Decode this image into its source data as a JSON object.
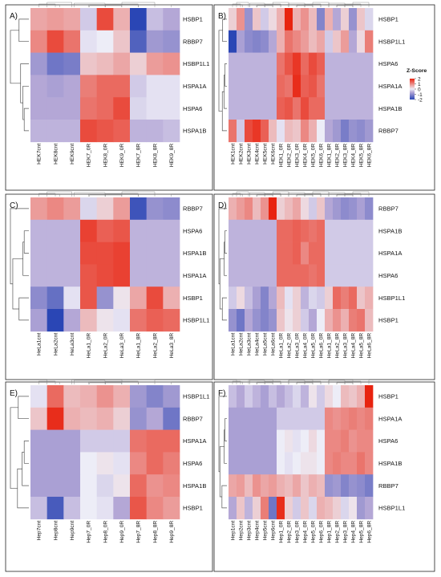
{
  "legend": {
    "title": "Z-Score",
    "ticks": [
      2,
      1,
      0,
      -1,
      -2
    ],
    "colors": {
      "high": "#e8230f",
      "mid": "#ededf7",
      "low": "#2a46b5",
      "neutral": "#b4a7d6"
    }
  },
  "chart_data": [
    {
      "type": "heatmap",
      "panel_label": "A)",
      "rows": [
        "HSBP1",
        "RBBP7",
        "HSBP1L1",
        "HSPA1A",
        "HSPA6",
        "HSPA1B"
      ],
      "columns": [
        "HEK7cnt",
        "HEK8cnt",
        "HEK9cnt",
        "HEK7_0R",
        "HEK8_0R",
        "HEK9_0R",
        "HEK7_8R",
        "HEK8_8R",
        "HEK9_8R"
      ],
      "values": [
        [
          0.7,
          0.8,
          0.7,
          -0.3,
          1.6,
          0.6,
          -2.0,
          -0.4,
          -0.6
        ],
        [
          1.0,
          1.6,
          1.2,
          -0.1,
          0.0,
          0.4,
          -1.6,
          -0.8,
          -0.9
        ],
        [
          -0.8,
          -1.3,
          -1.2,
          0.4,
          0.5,
          0.7,
          0.3,
          0.8,
          0.9
        ],
        [
          -0.6,
          -0.7,
          -0.6,
          1.1,
          1.3,
          1.3,
          -0.3,
          -0.1,
          -0.1
        ],
        [
          -0.6,
          -0.6,
          -0.6,
          1.2,
          1.3,
          1.6,
          -0.2,
          -0.1,
          -0.1
        ],
        [
          -0.5,
          -0.5,
          -0.5,
          1.6,
          1.5,
          1.4,
          -0.5,
          -0.5,
          -0.4
        ]
      ],
      "zlim": [
        -2,
        2
      ]
    },
    {
      "type": "heatmap",
      "panel_label": "B)",
      "rows": [
        "HSBP1",
        "HSBP1L1",
        "HSPA6",
        "HSPA1A",
        "HSPA1B",
        "RBBP7"
      ],
      "columns": [
        "HEK1cnt",
        "HEK2cnt",
        "HEK3cnt",
        "HEK4cnt",
        "HEK5cnt",
        "HEK6cnt",
        "HEK1_0R",
        "HEK2_0R",
        "HEK3_0R",
        "HEK4_0R",
        "HEK5_0R",
        "HEK6_0R",
        "HEK1_8R",
        "HEK2_8R",
        "HEK3_8R",
        "HEK4_8R",
        "HEK5_8R",
        "HEK6_8R"
      ],
      "values": [
        [
          0.3,
          0.9,
          -0.9,
          0.4,
          -0.3,
          0.2,
          0.6,
          2.0,
          0.6,
          0.9,
          0.5,
          -1.1,
          0.6,
          -0.6,
          0.3,
          -0.9,
          0.4,
          -0.2
        ],
        [
          -2.0,
          -0.7,
          -1.0,
          -1.1,
          -1.0,
          -0.6,
          0.6,
          1.2,
          1.0,
          0.8,
          0.5,
          0.7,
          -0.3,
          0.4,
          0.8,
          -0.6,
          0.2,
          1.1
        ],
        [
          -0.5,
          -0.5,
          -0.5,
          -0.5,
          -0.5,
          -0.5,
          1.2,
          1.5,
          1.8,
          1.3,
          1.6,
          1.4,
          -0.5,
          -0.5,
          -0.5,
          -0.5,
          -0.5,
          -0.5
        ],
        [
          -0.5,
          -0.5,
          -0.5,
          -0.5,
          -0.5,
          -0.5,
          1.3,
          1.2,
          1.9,
          1.4,
          1.5,
          1.2,
          -0.5,
          -0.5,
          -0.5,
          -0.5,
          -0.5,
          -0.5
        ],
        [
          -0.5,
          -0.5,
          -0.5,
          -0.5,
          -0.5,
          -0.5,
          1.4,
          1.5,
          1.2,
          1.6,
          1.3,
          1.3,
          -0.5,
          -0.5,
          -0.5,
          -0.5,
          -0.5,
          -0.5
        ],
        [
          1.2,
          -0.3,
          1.6,
          1.8,
          1.4,
          0.5,
          -0.1,
          0.5,
          0.4,
          1.0,
          0.6,
          0.0,
          -0.6,
          -0.8,
          -1.2,
          -0.9,
          -1.0,
          -0.8
        ]
      ],
      "zlim": [
        -2,
        2
      ]
    },
    {
      "type": "heatmap",
      "panel_label": "C)",
      "rows": [
        "RBBP7",
        "HSPA6",
        "HSPA1B",
        "HSPA1A",
        "HSBP1",
        "HSBP1L1"
      ],
      "columns": [
        "HeLa1cnt",
        "HeLa2cnt",
        "HeLa3cnt",
        "HeLa1_0R",
        "HeLa2_0R",
        "HeLa3_0R",
        "HeLa1_8R",
        "HeLa2_8R",
        "HeLa3_8R"
      ],
      "values": [
        [
          0.8,
          1.0,
          0.8,
          -0.2,
          0.3,
          0.8,
          -1.8,
          -0.9,
          -1.0
        ],
        [
          -0.5,
          -0.5,
          -0.5,
          1.7,
          1.4,
          1.5,
          -0.5,
          -0.5,
          -0.5
        ],
        [
          -0.5,
          -0.5,
          -0.5,
          1.6,
          1.6,
          1.7,
          -0.5,
          -0.5,
          -0.5
        ],
        [
          -0.5,
          -0.5,
          -0.5,
          1.5,
          1.6,
          1.7,
          -0.5,
          -0.5,
          -0.5
        ],
        [
          -1.0,
          -1.4,
          -0.1,
          1.5,
          -0.9,
          0.1,
          0.7,
          1.6,
          0.6
        ],
        [
          -0.7,
          -2.0,
          -0.6,
          0.5,
          0.1,
          -0.1,
          1.2,
          1.4,
          1.3
        ]
      ],
      "zlim": [
        -2,
        2
      ]
    },
    {
      "type": "heatmap",
      "panel_label": "D)",
      "rows": [
        "RBBP7",
        "HSPA1B",
        "HSPA1A",
        "HSPA6",
        "HSBP1L1",
        "HSBP1"
      ],
      "columns": [
        "HeLa1cnt",
        "HeLa2cnt",
        "HeLa3cnt",
        "HeLa4cnt",
        "HeLa5cnt",
        "HeLa6cnt",
        "HeLa1_0R",
        "HeLa2_0R",
        "HeLa3_0R",
        "HeLa4_0R",
        "HeLa5_0R",
        "HeLa6_0R",
        "HeLa1_8R",
        "HeLa2_8R",
        "HeLa3_8R",
        "HeLa4_8R",
        "HeLa5_8R",
        "HeLa6_8R"
      ],
      "values": [
        [
          0.6,
          0.8,
          1.0,
          0.5,
          0.9,
          2.0,
          0.3,
          0.5,
          0.7,
          0.2,
          -0.3,
          0.4,
          -0.6,
          -0.8,
          -1.0,
          -0.9,
          -0.7,
          -1.0
        ],
        [
          -0.5,
          -0.5,
          -0.5,
          -0.5,
          -0.5,
          -0.5,
          1.3,
          1.3,
          1.4,
          1.3,
          1.2,
          1.3,
          -0.3,
          -0.3,
          -0.3,
          -0.3,
          -0.3,
          -0.3
        ],
        [
          -0.5,
          -0.5,
          -0.5,
          -0.5,
          -0.5,
          -0.5,
          1.3,
          1.3,
          1.4,
          1.0,
          1.3,
          1.3,
          -0.3,
          -0.3,
          -0.3,
          -0.3,
          -0.3,
          -0.3
        ],
        [
          -0.5,
          -0.5,
          -0.5,
          -0.5,
          -0.5,
          -0.5,
          1.3,
          1.3,
          1.3,
          1.3,
          1.2,
          1.3,
          -0.3,
          -0.3,
          -0.3,
          -0.3,
          -0.3,
          -0.3
        ],
        [
          -0.3,
          0.2,
          -0.4,
          -0.7,
          -1.1,
          -0.6,
          0.5,
          -0.1,
          0.3,
          -0.5,
          -0.2,
          -0.3,
          0.3,
          1.3,
          1.1,
          1.3,
          0.4,
          0.6
        ],
        [
          -0.9,
          -1.3,
          -0.6,
          -0.9,
          -1.1,
          -0.9,
          0.4,
          0.1,
          0.3,
          -0.3,
          -0.6,
          0.0,
          0.6,
          0.9,
          0.6,
          1.1,
          1.2,
          0.5
        ]
      ],
      "zlim": [
        -2,
        2
      ]
    },
    {
      "type": "heatmap",
      "panel_label": "E)",
      "rows": [
        "HSBP1L1",
        "RBBP7",
        "HSPA1A",
        "HSPA6",
        "HSPA1B",
        "HSBP1"
      ],
      "columns": [
        "Hep7cnt",
        "Hep8cnt",
        "Hep9cnt",
        "Hep7_0R",
        "Hep8_0R",
        "Hep9_0R",
        "Hep7_8R",
        "Hep8_8R",
        "Hep9_8R"
      ],
      "values": [
        [
          -0.1,
          1.3,
          0.5,
          0.6,
          0.9,
          0.6,
          -0.8,
          -1.1,
          -0.8
        ],
        [
          0.4,
          1.9,
          0.6,
          0.5,
          0.6,
          0.3,
          -0.9,
          -0.6,
          -1.3
        ],
        [
          -0.7,
          -0.7,
          -0.7,
          -0.3,
          -0.3,
          -0.3,
          1.2,
          1.3,
          1.3
        ],
        [
          -0.7,
          -0.7,
          -0.7,
          0.0,
          0.1,
          -0.1,
          1.0,
          1.3,
          1.1
        ],
        [
          -0.7,
          -0.7,
          -0.7,
          0.0,
          -0.2,
          0.1,
          1.3,
          0.9,
          1.0
        ],
        [
          -0.4,
          -1.7,
          -0.4,
          0.0,
          -0.1,
          -0.6,
          1.5,
          1.0,
          0.8
        ]
      ],
      "zlim": [
        -2,
        2
      ]
    },
    {
      "type": "heatmap",
      "panel_label": "F)",
      "rows": [
        "HSBP1",
        "HSPA1A",
        "HSPA6",
        "HSPA1B",
        "RBBP7",
        "HSBP1L1"
      ],
      "columns": [
        "Hep1cnt",
        "Hep2cnt",
        "Hep3cnt",
        "Hep4cnt",
        "Hep5cnt",
        "Hep6cnt",
        "Hep1_0R",
        "Hep2_0R",
        "Hep3_0R",
        "Hep4_0R",
        "Hep5_0R",
        "Hep6_0R",
        "Hep1_8R",
        "Hep2_8R",
        "Hep3_8R",
        "Hep4_8R",
        "Hep5_8R",
        "Hep6_8R"
      ],
      "values": [
        [
          -0.4,
          -0.6,
          -0.3,
          -0.5,
          -0.7,
          -0.4,
          -0.6,
          -0.4,
          -0.2,
          -0.5,
          0.1,
          -0.3,
          0.2,
          0.0,
          0.5,
          0.4,
          0.6,
          2.0
        ],
        [
          -0.7,
          -0.7,
          -0.7,
          -0.7,
          -0.7,
          -0.7,
          -0.3,
          -0.3,
          -0.3,
          -0.3,
          -0.3,
          -0.3,
          1.0,
          0.9,
          1.0,
          1.1,
          1.0,
          1.1
        ],
        [
          -0.7,
          -0.7,
          -0.7,
          -0.7,
          -0.7,
          -0.7,
          0.0,
          0.1,
          -0.1,
          0.0,
          0.2,
          0.0,
          1.0,
          1.0,
          1.1,
          0.9,
          1.0,
          1.0
        ],
        [
          -0.7,
          -0.7,
          -0.7,
          -0.7,
          -0.7,
          -0.7,
          0.0,
          -0.1,
          0.0,
          0.1,
          0.1,
          0.0,
          1.0,
          1.1,
          1.0,
          1.0,
          1.2,
          1.0
        ],
        [
          0.7,
          0.8,
          0.5,
          0.9,
          0.7,
          0.8,
          0.6,
          0.5,
          0.7,
          0.4,
          0.6,
          0.5,
          -0.9,
          -0.8,
          -1.1,
          -0.9,
          -1.0,
          -1.2
        ],
        [
          -0.6,
          0.4,
          -0.5,
          0.3,
          1.1,
          -1.3,
          1.9,
          0.3,
          -0.3,
          0.4,
          -0.2,
          0.6,
          0.5,
          0.3,
          -0.2,
          0.1,
          -0.8,
          -0.6
        ]
      ],
      "zlim": [
        -2,
        2
      ]
    }
  ]
}
